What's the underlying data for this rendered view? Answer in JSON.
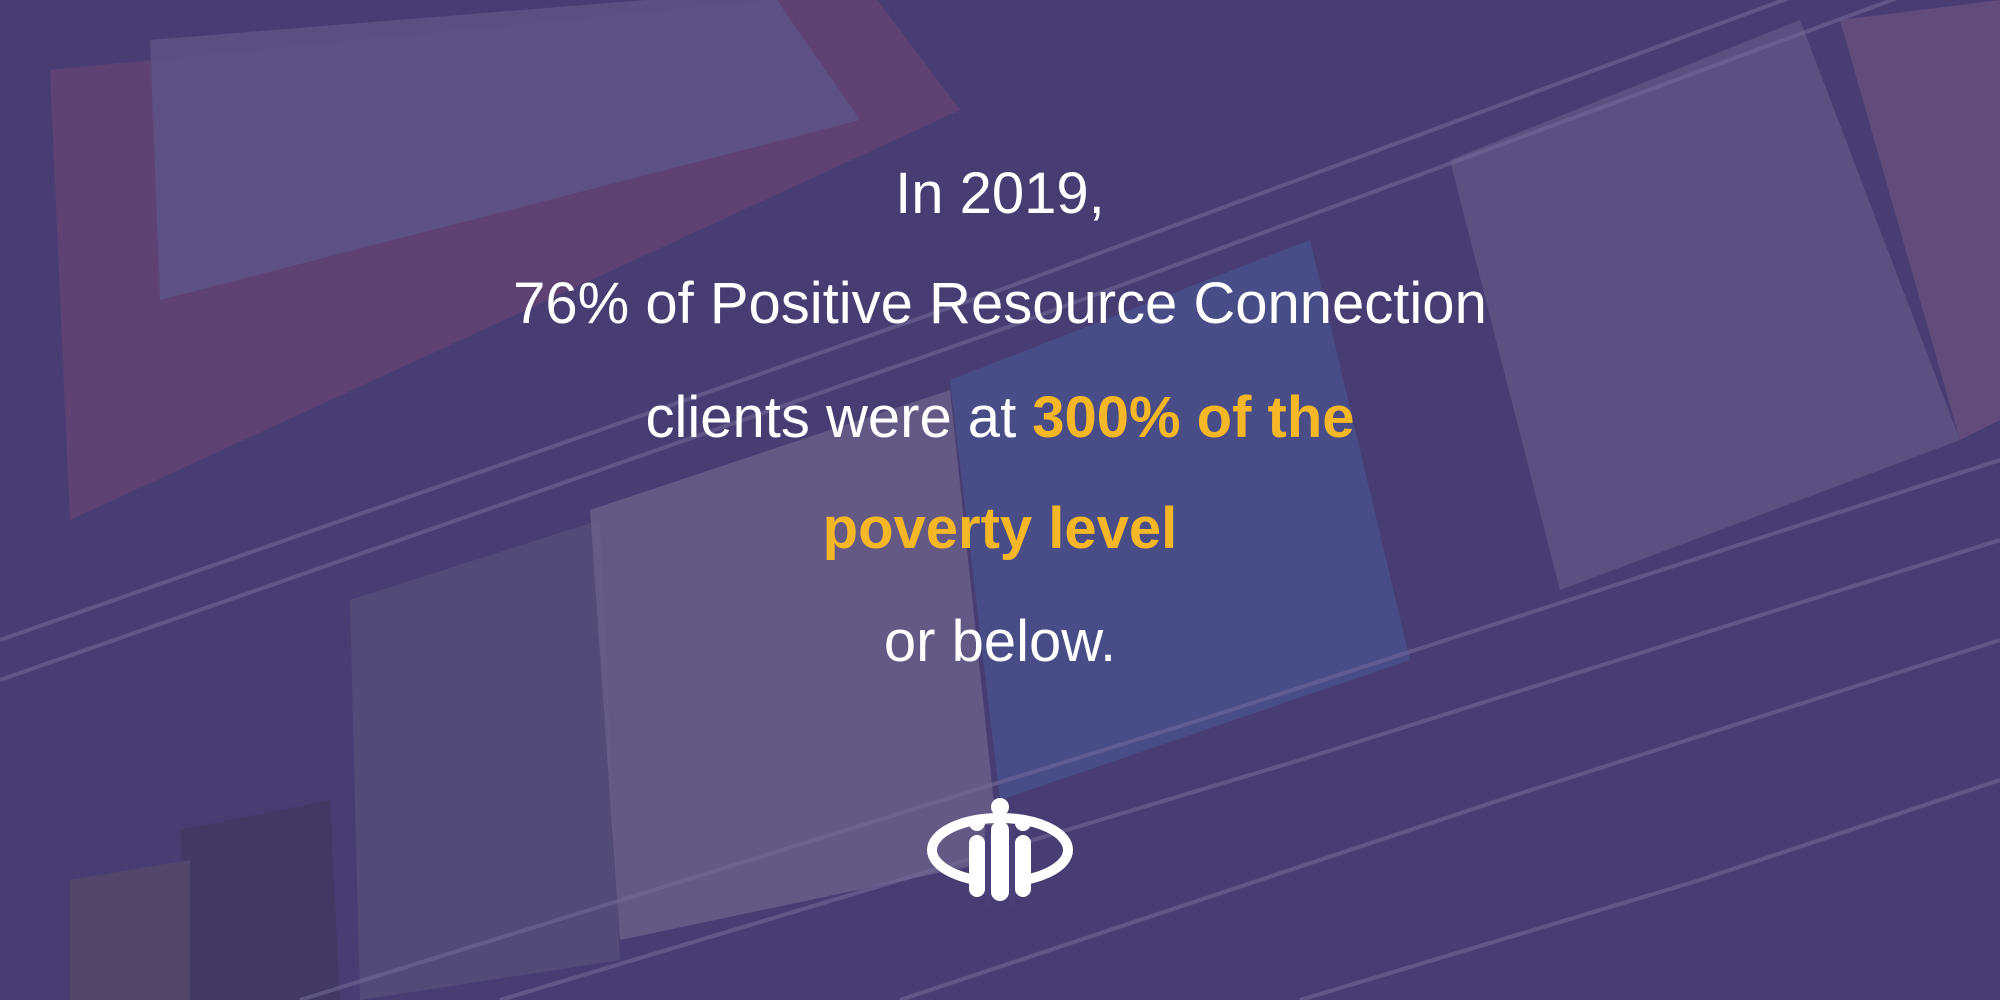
{
  "message": {
    "line1": "In 2019,",
    "line2": "76% of Positive Resource Connection",
    "line3": "clients were at",
    "highlight1": "300% of the",
    "highlight2": "poverty level",
    "line5": "or below."
  }
}
